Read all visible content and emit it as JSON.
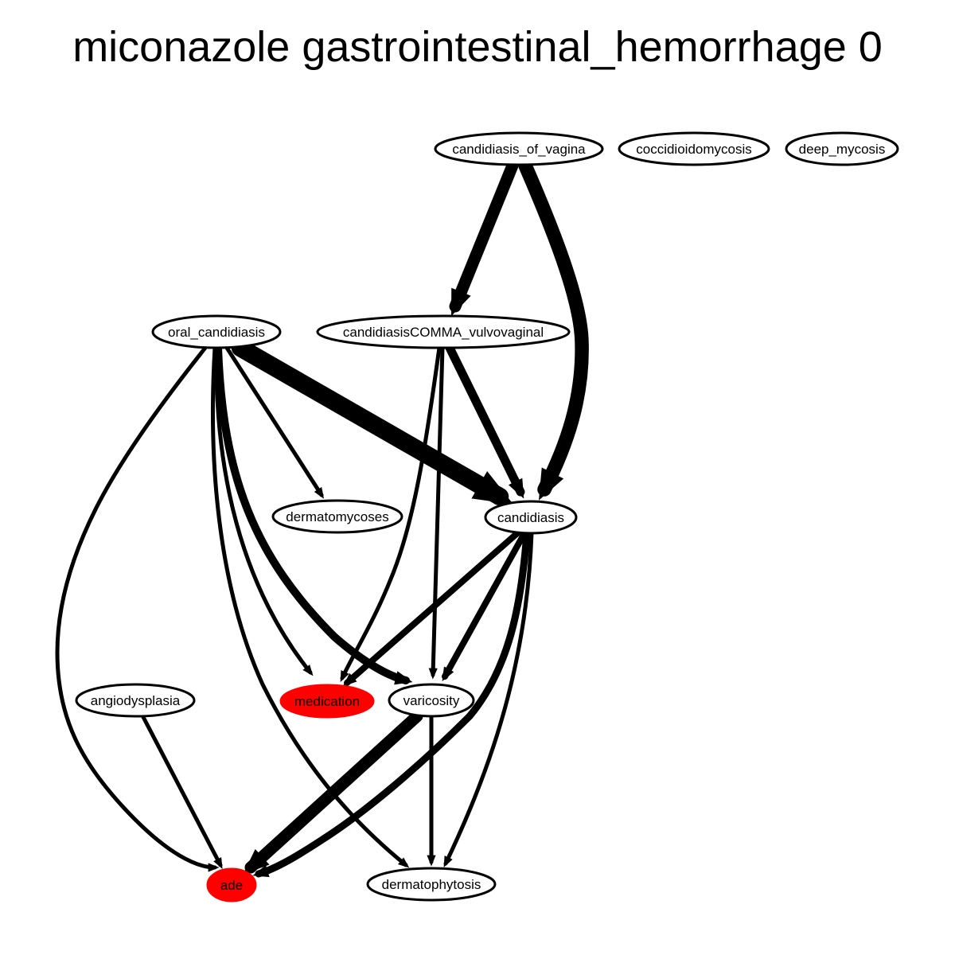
{
  "title": "miconazole gastrointestinal_hemorrhage 0",
  "colors": {
    "highlight": "#ff0000",
    "normal": "#ffffff",
    "stroke": "#000000"
  },
  "nodes": [
    {
      "id": "candidiasis_of_vagina",
      "label": "candidiasis_of_vagina",
      "highlight": false
    },
    {
      "id": "coccidioidomycosis",
      "label": "coccidioidomycosis",
      "highlight": false
    },
    {
      "id": "deep_mycosis",
      "label": "deep_mycosis",
      "highlight": false
    },
    {
      "id": "oral_candidiasis",
      "label": "oral_candidiasis",
      "highlight": false
    },
    {
      "id": "candidiasisCOMMA_vulvovaginal",
      "label": "candidiasisCOMMA_vulvovaginal",
      "highlight": false
    },
    {
      "id": "dermatomycoses",
      "label": "dermatomycoses",
      "highlight": false
    },
    {
      "id": "candidiasis",
      "label": "candidiasis",
      "highlight": false
    },
    {
      "id": "angiodysplasia",
      "label": "angiodysplasia",
      "highlight": false
    },
    {
      "id": "medication",
      "label": "medication",
      "highlight": true
    },
    {
      "id": "varicosity",
      "label": "varicosity",
      "highlight": false
    },
    {
      "id": "ade",
      "label": "ade",
      "highlight": true
    },
    {
      "id": "dermatophytosis",
      "label": "dermatophytosis",
      "highlight": false
    }
  ],
  "edges": [
    {
      "from": "candidiasis_of_vagina",
      "to": "candidiasisCOMMA_vulvovaginal",
      "weight": 3
    },
    {
      "from": "candidiasis_of_vagina",
      "to": "candidiasis",
      "weight": 3.5
    },
    {
      "from": "oral_candidiasis",
      "to": "candidiasis",
      "weight": 4.5
    },
    {
      "from": "oral_candidiasis",
      "to": "dermatomycoses",
      "weight": 1
    },
    {
      "from": "oral_candidiasis",
      "to": "medication",
      "weight": 1
    },
    {
      "from": "oral_candidiasis",
      "to": "varicosity",
      "weight": 2
    },
    {
      "from": "oral_candidiasis",
      "to": "ade",
      "weight": 1
    },
    {
      "from": "oral_candidiasis",
      "to": "dermatophytosis",
      "weight": 1
    },
    {
      "from": "candidiasisCOMMA_vulvovaginal",
      "to": "candidiasis",
      "weight": 2.2
    },
    {
      "from": "candidiasisCOMMA_vulvovaginal",
      "to": "medication",
      "weight": 1
    },
    {
      "from": "candidiasisCOMMA_vulvovaginal",
      "to": "varicosity",
      "weight": 1
    },
    {
      "from": "candidiasis",
      "to": "medication",
      "weight": 1.6
    },
    {
      "from": "candidiasis",
      "to": "varicosity",
      "weight": 1.6
    },
    {
      "from": "candidiasis",
      "to": "ade",
      "weight": 1.8
    },
    {
      "from": "candidiasis",
      "to": "dermatophytosis",
      "weight": 1
    },
    {
      "from": "angiodysplasia",
      "to": "ade",
      "weight": 1
    },
    {
      "from": "varicosity",
      "to": "ade",
      "weight": 3
    },
    {
      "from": "varicosity",
      "to": "dermatophytosis",
      "weight": 1
    }
  ]
}
